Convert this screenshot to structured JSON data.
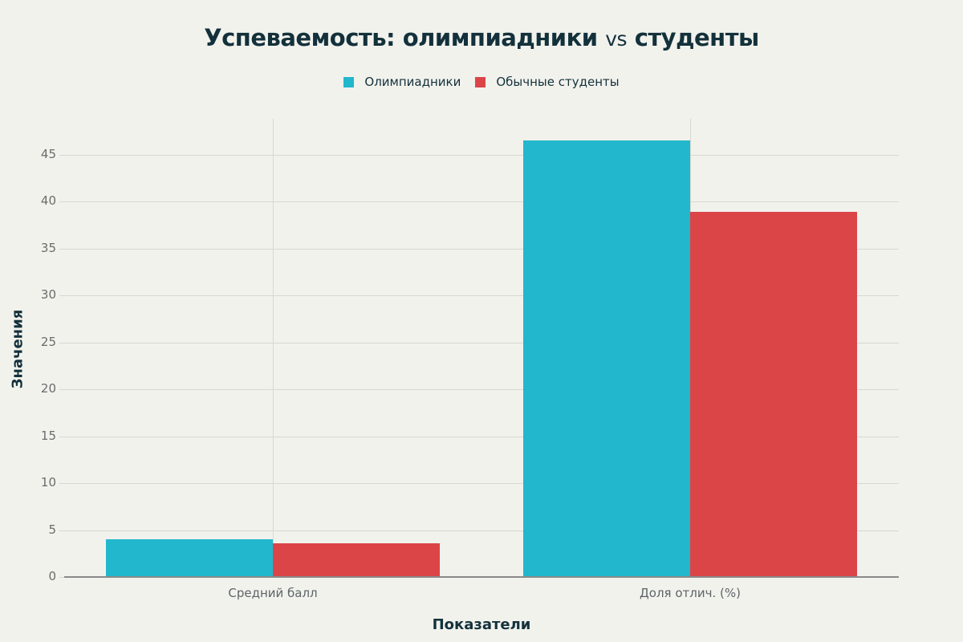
{
  "title": {
    "part1": "Успеваемость: олимпиадники",
    "vs": "vs",
    "part2": "студенты"
  },
  "legend": [
    {
      "label": "Олимпиадники",
      "color": "#22b7cc"
    },
    {
      "label": "Обычные студенты",
      "color": "#db4548"
    }
  ],
  "axes": {
    "xlabel": "Показатели",
    "ylabel": "Значения",
    "yticks": [
      "0",
      "5",
      "10",
      "15",
      "20",
      "25",
      "30",
      "35",
      "40",
      "45"
    ],
    "xticks": [
      "Средний балл",
      "Доля отлич. (%)"
    ]
  },
  "chart_data": {
    "type": "bar",
    "title": "Успеваемость: олимпиадники vs студенты",
    "categories": [
      "Средний балл",
      "Доля отлич. (%)"
    ],
    "series": [
      {
        "name": "Олимпиадники",
        "color": "#22b7cc",
        "values": [
          4.0,
          46.5
        ]
      },
      {
        "name": "Обычные студенты",
        "color": "#db4548",
        "values": [
          3.6,
          38.9
        ]
      }
    ],
    "xlabel": "Показатели",
    "ylabel": "Значения",
    "ylim": [
      0,
      48.9
    ],
    "yticks": [
      0,
      5,
      10,
      15,
      20,
      25,
      30,
      35,
      40,
      45
    ],
    "grid": true,
    "legend_position": "top-center",
    "barmode": "group"
  }
}
